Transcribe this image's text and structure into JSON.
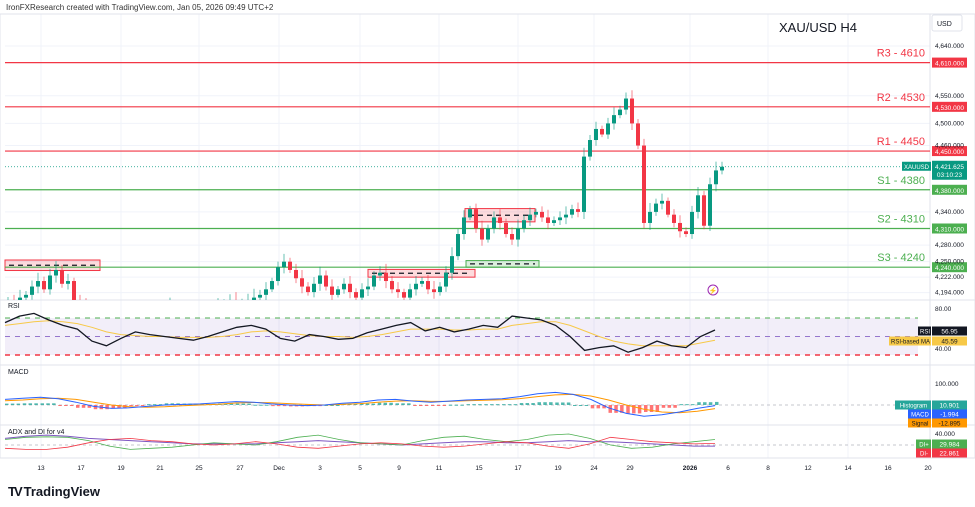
{
  "header": {
    "attribution": "IronFXResearch created with TradingView.com, Jan 05, 2026 09:49 UTC+2"
  },
  "logo": {
    "text": "TradingView"
  },
  "chart_data": {
    "type": "candlestick",
    "title": "XAU/USD H4",
    "symbol": "XAUUSD",
    "currency": "USD",
    "last_price": "4,421.625",
    "countdown": "03:10:23",
    "ylim": [
      4194,
      4660
    ],
    "price_ticks": [
      "4,640.000",
      "4,550.000",
      "4,500.000",
      "4,460.000",
      "4,340.000",
      "4,280.000",
      "4,250.000",
      "4,222.000",
      "4,194.000"
    ],
    "price_tick_values": [
      4640,
      4550,
      4500,
      4460,
      4340,
      4280,
      4250,
      4222,
      4194
    ],
    "x_ticks": [
      "13",
      "17",
      "19",
      "21",
      "25",
      "27",
      "Dec",
      "3",
      "5",
      "9",
      "11",
      "15",
      "17",
      "19",
      "24",
      "29",
      "2026",
      "6",
      "8",
      "12",
      "14",
      "16",
      "20"
    ],
    "closes": [
      4180,
      4175,
      4185,
      4190,
      4205,
      4215,
      4200,
      4225,
      4235,
      4210,
      4215,
      4180,
      4170,
      4160,
      4150,
      4140,
      4130,
      4135,
      4140,
      4150,
      4160,
      4155,
      4150,
      4145,
      4140,
      4150,
      4160,
      4170,
      4165,
      4160,
      4150,
      4145,
      4140,
      4150,
      4160,
      4170,
      4175,
      4180,
      4170,
      4175,
      4180,
      4185,
      4190,
      4200,
      4215,
      4240,
      4250,
      4235,
      4220,
      4205,
      4195,
      4210,
      4225,
      4205,
      4190,
      4200,
      4210,
      4195,
      4185,
      4200,
      4205,
      4225,
      4230,
      4215,
      4200,
      4195,
      4185,
      4200,
      4210,
      4215,
      4200,
      4195,
      4205,
      4230,
      4260,
      4300,
      4330,
      4345,
      4310,
      4290,
      4310,
      4330,
      4320,
      4300,
      4290,
      4310,
      4325,
      4335,
      4340,
      4330,
      4320,
      4325,
      4330,
      4335,
      4345,
      4340,
      4440,
      4470,
      4490,
      4480,
      4500,
      4515,
      4525,
      4545,
      4500,
      4460,
      4320,
      4340,
      4355,
      4360,
      4335,
      4320,
      4305,
      4300,
      4340,
      4370,
      4315,
      4390,
      4415,
      4421.625
    ],
    "levels": [
      {
        "label": "R3 - 4610",
        "value": 4610,
        "tag": "4,610.000",
        "color": "#f23645"
      },
      {
        "label": "R2 - 4530",
        "value": 4530,
        "tag": "4,530.000",
        "color": "#f23645"
      },
      {
        "label": "R1 - 4450",
        "value": 4450,
        "tag": "4,450.000",
        "color": "#f23645"
      },
      {
        "label": "S1 - 4380",
        "value": 4380,
        "tag": "4,380.000",
        "color": "#4caf50"
      },
      {
        "label": "S2 - 4310",
        "value": 4310,
        "tag": "4,310.000",
        "color": "#4caf50"
      },
      {
        "label": "S3 - 4240",
        "value": 4240,
        "tag": "4,240.000",
        "color": "#4caf50"
      }
    ],
    "colors": {
      "up": "#089981",
      "down": "#f23645",
      "resistance": "#f23645",
      "support": "#4caf50",
      "rsi": "#131722",
      "rsi_ma": "#f7c948",
      "macd": "#2962ff",
      "signal": "#ff9800",
      "di_plus": "#4caf50",
      "di_minus": "#f23645",
      "adx": "#7e57c2"
    },
    "rsi": {
      "label": "RSI",
      "value": "56.95",
      "ma_label": "RSI-based MA",
      "ma_value": "45.59",
      "ticks": [
        "80.00",
        "40.00"
      ],
      "bands": [
        70,
        50,
        30
      ],
      "values": [
        65,
        72,
        75,
        68,
        62,
        58,
        45,
        40,
        48,
        55,
        52,
        50,
        48,
        46,
        50,
        55,
        60,
        62,
        58,
        48,
        45,
        52,
        50,
        47,
        48,
        54,
        58,
        62,
        65,
        56,
        60,
        55,
        58,
        62,
        60,
        72,
        70,
        68,
        62,
        50,
        35,
        38,
        40,
        33,
        38,
        45,
        40,
        38,
        50,
        57
      ],
      "ma_values": [
        62,
        64,
        66,
        67,
        66,
        64,
        60,
        55,
        52,
        51,
        50,
        50,
        49,
        49,
        49,
        50,
        52,
        55,
        56,
        55,
        53,
        51,
        50,
        50,
        49,
        50,
        52,
        55,
        58,
        58,
        58,
        57,
        57,
        58,
        58,
        62,
        64,
        66,
        66,
        62,
        56,
        50,
        45,
        42,
        40,
        40,
        40,
        40,
        43,
        46
      ]
    },
    "macd": {
      "label": "MACD",
      "tick": "100.000",
      "histogram_label": "Histogram",
      "histogram_value": "10.901",
      "macd_label": "MACD",
      "macd_value": "-1.994",
      "signal_label": "Signal",
      "signal_value": "-12.895",
      "macd_values": [
        20,
        24,
        28,
        22,
        10,
        -5,
        -12,
        -10,
        -5,
        0,
        2,
        4,
        8,
        12,
        10,
        4,
        0,
        -2,
        0,
        6,
        10,
        18,
        20,
        14,
        10,
        14,
        18,
        20,
        22,
        30,
        40,
        45,
        38,
        20,
        -10,
        -30,
        -40,
        -35,
        -25,
        -12,
        -2
      ],
      "signal_values": [
        15,
        18,
        22,
        24,
        20,
        10,
        0,
        -6,
        -8,
        -6,
        -3,
        0,
        3,
        7,
        9,
        8,
        5,
        2,
        0,
        2,
        5,
        10,
        14,
        15,
        13,
        13,
        15,
        17,
        19,
        23,
        30,
        36,
        38,
        32,
        18,
        0,
        -15,
        -25,
        -28,
        -22,
        -13
      ]
    },
    "adx": {
      "label": "ADX and DI for v4",
      "tick": "40.000",
      "di_plus_label": "DI+",
      "di_plus_value": "29.984",
      "di_minus_label": "DI-",
      "di_minus_value": "22.861",
      "di_plus_values": [
        30,
        34,
        35,
        34,
        28,
        18,
        12,
        14,
        16,
        20,
        24,
        22,
        20,
        26,
        34,
        38,
        30,
        24,
        22,
        20,
        28,
        34,
        36,
        30,
        26,
        30,
        38,
        40,
        32,
        20,
        14,
        16,
        22,
        26,
        30
      ],
      "di_minus_values": [
        14,
        12,
        12,
        16,
        24,
        30,
        32,
        28,
        26,
        22,
        20,
        22,
        26,
        22,
        16,
        14,
        18,
        22,
        24,
        22,
        18,
        16,
        18,
        22,
        26,
        24,
        18,
        14,
        22,
        34,
        30,
        26,
        24,
        22,
        23
      ],
      "adx_values": [
        32,
        36,
        38,
        36,
        32,
        30,
        28,
        26,
        24,
        22,
        22,
        22,
        22,
        24,
        26,
        28,
        26,
        24,
        22,
        20,
        22,
        24,
        26,
        26,
        24,
        24,
        26,
        28,
        26,
        26,
        24,
        22,
        20,
        18,
        18
      ]
    }
  }
}
